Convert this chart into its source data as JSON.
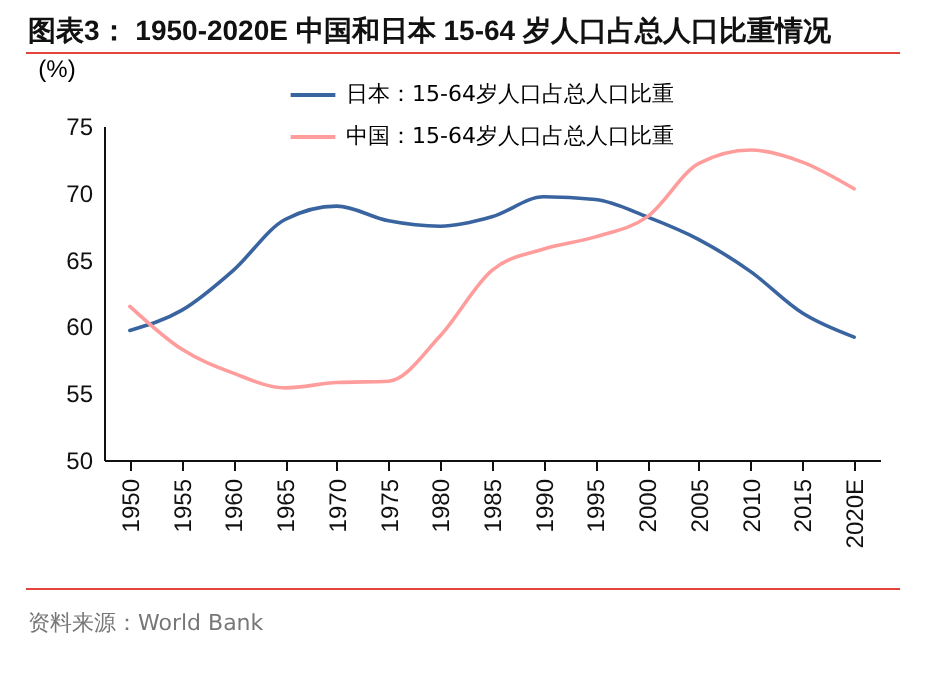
{
  "chart_data": {
    "type": "line",
    "title": "图表3：  1950-2020E 中国和日本 15-64 岁人口占总人口比重情况",
    "ylabel": "(%)",
    "categories": [
      "1950",
      "1955",
      "1960",
      "1965",
      "1970",
      "1975",
      "1980",
      "1985",
      "1990",
      "1995",
      "2000",
      "2005",
      "2010",
      "2015",
      "2020E"
    ],
    "series": [
      {
        "name": "日本：15-64岁人口占总人口比重",
        "color": "#3a64a0",
        "values": [
          59.7,
          61.2,
          64.2,
          68.0,
          69.0,
          67.9,
          67.5,
          68.2,
          69.7,
          69.5,
          68.2,
          66.5,
          64.1,
          61.0,
          59.2
        ]
      },
      {
        "name": "中国：15-64岁人口占总人口比重",
        "color": "#ff9c9c",
        "values": [
          61.5,
          58.3,
          56.5,
          55.4,
          55.8,
          55.9,
          59.3,
          64.2,
          65.8,
          66.7,
          68.2,
          72.2,
          73.2,
          72.3,
          70.3
        ]
      }
    ],
    "ylim": [
      50,
      75
    ],
    "yticks": [
      50,
      55,
      60,
      65,
      70,
      75
    ],
    "grid": false,
    "legend": "top",
    "marker": "none",
    "line_style": "solid",
    "annotations": [
      "资料来源：World Bank"
    ]
  }
}
